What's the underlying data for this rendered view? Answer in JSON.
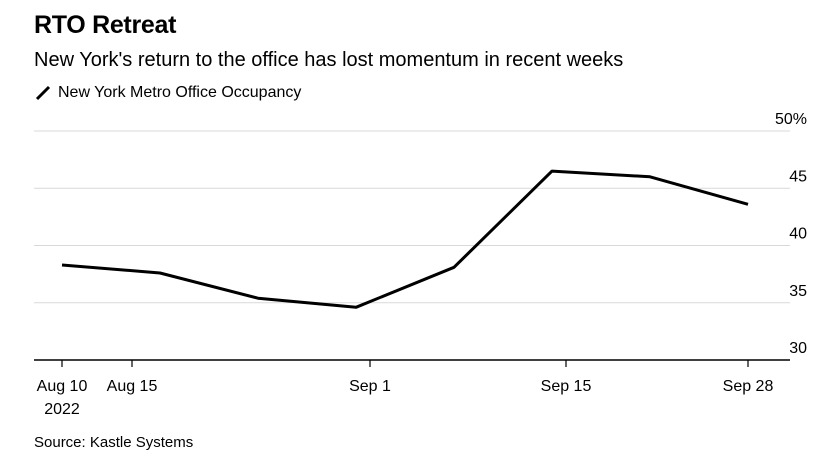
{
  "title": "RTO Retreat",
  "subtitle": "New York's return to the office has lost momentum in recent weeks",
  "source": "Source: Kastle Systems",
  "colors": {
    "line": "#000000",
    "grid": "#d9d9d9",
    "axis": "#000000"
  },
  "legend": {
    "icon": "line-swatch-icon",
    "label": "New York Metro Office Occupancy"
  },
  "chart_data": {
    "type": "line",
    "series": [
      {
        "name": "New York Metro Office Occupancy",
        "x": [
          "2022-08-10",
          "2022-08-17",
          "2022-08-24",
          "2022-08-31",
          "2022-09-07",
          "2022-09-14",
          "2022-09-21",
          "2022-09-28"
        ],
        "values": [
          38.3,
          37.6,
          35.4,
          34.6,
          38.1,
          46.5,
          46.0,
          43.6
        ]
      }
    ],
    "xlim": [
      "2022-08-08",
      "2022-10-01"
    ],
    "ylim": [
      30,
      50
    ],
    "x_ticks": [
      {
        "date": "2022-08-10",
        "label": "Aug 10",
        "sublabel": "2022"
      },
      {
        "date": "2022-08-15",
        "label": "Aug 15",
        "sublabel": ""
      },
      {
        "date": "2022-09-01",
        "label": "Sep 1",
        "sublabel": ""
      },
      {
        "date": "2022-09-15",
        "label": "Sep 15",
        "sublabel": ""
      },
      {
        "date": "2022-09-28",
        "label": "Sep 28",
        "sublabel": ""
      }
    ],
    "y_ticks": [
      {
        "value": 30,
        "label": "30"
      },
      {
        "value": 35,
        "label": "35"
      },
      {
        "value": 40,
        "label": "40"
      },
      {
        "value": 45,
        "label": "45"
      },
      {
        "value": 50,
        "label": "50%"
      }
    ],
    "y_axis_side": "right",
    "grid": true,
    "legend_position": "top-left"
  }
}
